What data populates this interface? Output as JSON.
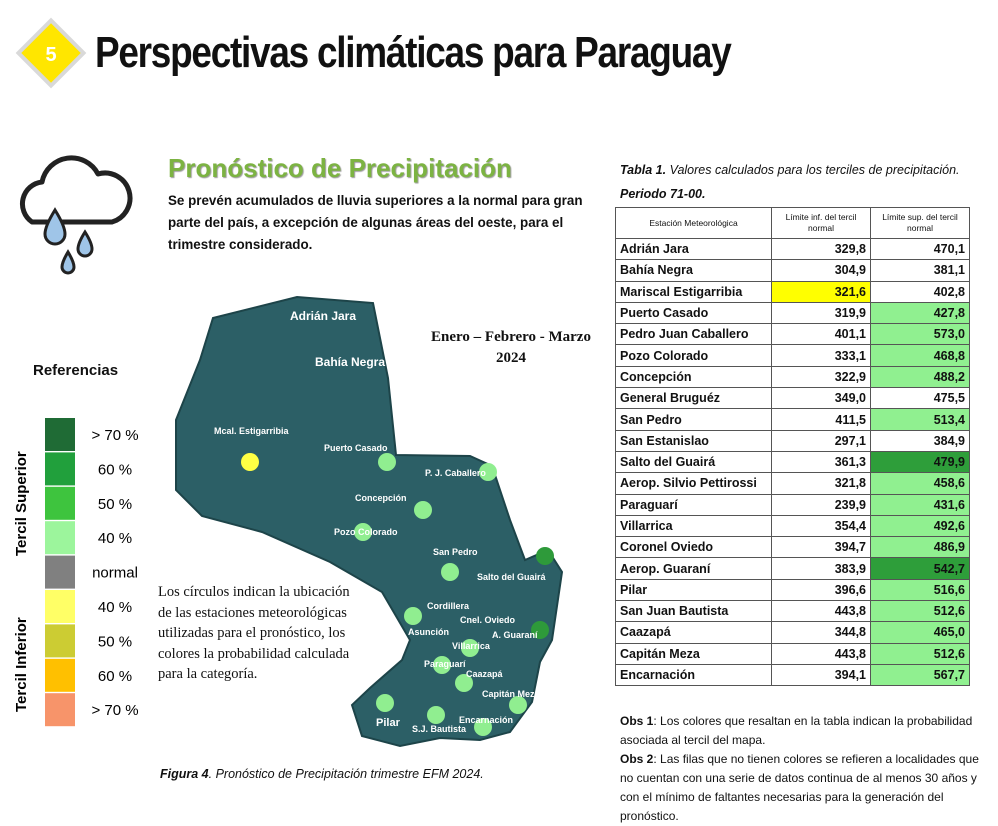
{
  "header": {
    "badge": "5",
    "title": "Perspectivas climáticas para Paraguay"
  },
  "forecast": {
    "title": "Pronóstico de Precipitación",
    "description": "Se prevén acumulados de lluvia superiores a la normal para gran parte del país, a excepción de algunas áreas del oeste, para el trimestre considerado."
  },
  "map": {
    "period": "Enero – Febrero - Marzo",
    "year": "2024",
    "labels": [
      "Adrián Jara",
      "Bahía Negra",
      "Mcal. Estigarribia",
      "Puerto Casado",
      "P. J. Caballero",
      "Concepción",
      "Pozo Colorado",
      "San Pedro",
      "Salto del Guairá",
      "Cordillera",
      "Cnel. Oviedo",
      "Asunción",
      "A. Guaraní",
      "Villarrica",
      "Paraguarí",
      "Caazapá",
      "Capitán Meza",
      "Pilar",
      "S.J. Bautista",
      "Encarnación"
    ],
    "note": "Los círculos indican la ubicación de las estaciones meteorológicas utilizadas para el pronóstico, los colores la probabilidad calculada para la categoría.",
    "caption": {
      "label": "Figura 4",
      "text": ". Pronóstico de Precipitación trimestre EFM 2024."
    }
  },
  "legend": {
    "title": "Referencias",
    "upper_label": "Tercil Superior",
    "lower_label": "Tercil Inferior",
    "items": [
      {
        "label": "> 70 %",
        "color": "#1f6b35"
      },
      {
        "label": "60 %",
        "color": "#21a03c"
      },
      {
        "label": "50 %",
        "color": "#3ec43e"
      },
      {
        "label": "40 %",
        "color": "#9cf59c"
      },
      {
        "label": "normal",
        "color": "#808080"
      },
      {
        "label": "40 %",
        "color": "#ffff66"
      },
      {
        "label": "50 %",
        "color": "#cccc33"
      },
      {
        "label": "60 %",
        "color": "#ffc000"
      },
      {
        "label": "> 70 %",
        "color": "#f7946a"
      }
    ]
  },
  "table": {
    "caption": {
      "label": "Tabla 1.",
      "text": " Valores calculados para los terciles de precipitación.",
      "period": "Periodo 71-00."
    },
    "headers": [
      "Estación Meteorológica",
      "Límite inf. del tercil normal",
      "Límite sup. del tercil normal"
    ],
    "rows": [
      {
        "station": "Adrián Jara",
        "lower": "329,8",
        "upper": "470,1"
      },
      {
        "station": "Bahía Negra",
        "lower": "304,9",
        "upper": "381,1"
      },
      {
        "station": "Mariscal Estigarribia",
        "lower": "321,6",
        "upper": "402,8",
        "lower_color": "#ffff00"
      },
      {
        "station": "Puerto Casado",
        "lower": "319,9",
        "upper": "427,8",
        "upper_color": "#90f090"
      },
      {
        "station": "Pedro Juan Caballero",
        "lower": "401,1",
        "upper": "573,0",
        "upper_color": "#90f090"
      },
      {
        "station": "Pozo Colorado",
        "lower": "333,1",
        "upper": "468,8",
        "upper_color": "#90f090"
      },
      {
        "station": "Concepción",
        "lower": "322,9",
        "upper": "488,2",
        "upper_color": "#90f090"
      },
      {
        "station": "General Bruguéz",
        "lower": "349,0",
        "upper": "475,5"
      },
      {
        "station": "San Pedro",
        "lower": "411,5",
        "upper": "513,4",
        "upper_color": "#90f090"
      },
      {
        "station": "San Estanislao",
        "lower": "297,1",
        "upper": "384,9"
      },
      {
        "station": "Salto del Guairá",
        "lower": "361,3",
        "upper": "479,9",
        "upper_color": "#2e9e3a"
      },
      {
        "station": "Aerop. Silvio Pettirossi",
        "lower": "321,8",
        "upper": "458,6",
        "upper_color": "#90f090"
      },
      {
        "station": "Paraguarí",
        "lower": "239,9",
        "upper": "431,6",
        "upper_color": "#90f090"
      },
      {
        "station": "Villarrica",
        "lower": "354,4",
        "upper": "492,6",
        "upper_color": "#90f090"
      },
      {
        "station": "Coronel Oviedo",
        "lower": "394,7",
        "upper": "486,9",
        "upper_color": "#90f090"
      },
      {
        "station": "Aerop. Guaraní",
        "lower": "383,9",
        "upper": "542,7",
        "upper_color": "#2e9e3a"
      },
      {
        "station": "Pilar",
        "lower": "396,6",
        "upper": "516,6",
        "upper_color": "#90f090"
      },
      {
        "station": "San Juan Bautista",
        "lower": "443,8",
        "upper": "512,6",
        "upper_color": "#90f090"
      },
      {
        "station": "Caazapá",
        "lower": "344,8",
        "upper": "465,0",
        "upper_color": "#90f090"
      },
      {
        "station": "Capitán Meza",
        "lower": "443,8",
        "upper": "512,6",
        "upper_color": "#90f090"
      },
      {
        "station": "Encarnación",
        "lower": "394,1",
        "upper": "567,7",
        "upper_color": "#90f090"
      }
    ]
  },
  "notes": [
    {
      "label": "Obs 1",
      "text": ": Los colores que resaltan en la tabla indican la probabilidad asociada al tercil del mapa."
    },
    {
      "label": "Obs 2",
      "text": ": Las filas que no tienen colores se refieren a localidades que no cuentan con una serie de datos continua de al menos 30 años y con el mínimo de faltantes necesarias para la generación del pronóstico."
    }
  ]
}
